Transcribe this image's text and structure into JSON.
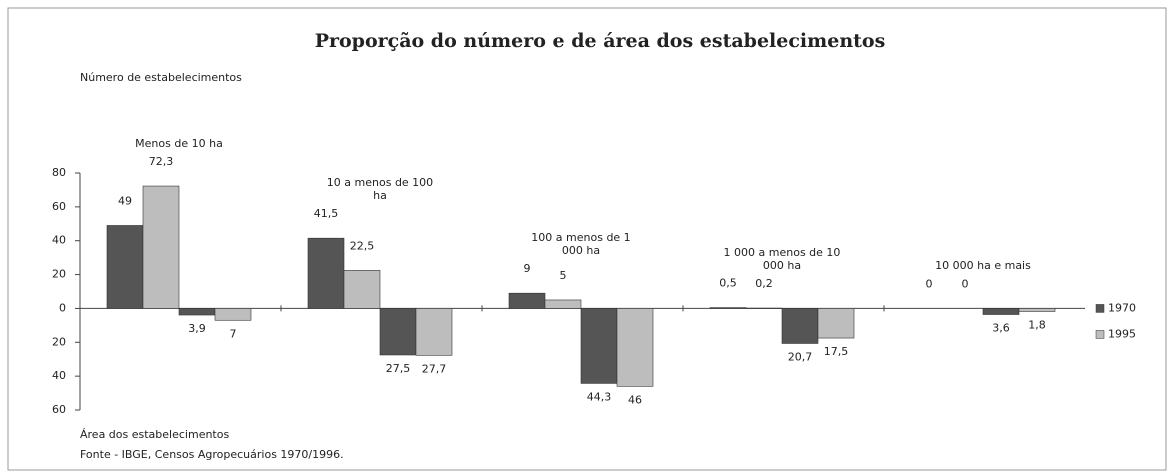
{
  "chart_data": {
    "type": "bar",
    "title": "Proporção do número e de área dos estabelecimentos",
    "y_label_top": "Número de estabelecimentos",
    "y_label_bottom": "Área dos estabelecimentos",
    "source": "Fonte - IBGE, Censos Agropecuários 1970/1996.",
    "categories": [
      "Menos de 10 ha",
      "10 a menos de 100 ha",
      "100 a menos de 1 000 ha",
      "1 000 a menos de 10 000 ha",
      "10 000 ha e mais"
    ],
    "series": [
      {
        "name": "1970",
        "color": "#555555",
        "values": [
          49,
          41.5,
          9,
          0.5,
          0
        ],
        "value_labels": [
          "49",
          "41,5",
          "9",
          "0,5",
          "0"
        ],
        "area_values": [
          -3.9,
          -27.5,
          -44.3,
          -20.7,
          -3.6
        ],
        "area_value_labels": [
          "3,9",
          "27,5",
          "44,3",
          "20,7",
          "3,6"
        ]
      },
      {
        "name": "1995",
        "color": "#bdbdbd",
        "values": [
          72.3,
          22.5,
          5,
          0.2,
          0
        ],
        "value_labels": [
          "72,3",
          "22,5",
          "5",
          "0,2",
          "0"
        ],
        "area_values": [
          -7,
          -27.7,
          -46,
          -17.5,
          -1.8
        ],
        "area_value_labels": [
          "7",
          "27,7",
          "46",
          "17,5",
          "1,8"
        ]
      }
    ],
    "ylim": [
      -60,
      80
    ],
    "yticks": [
      80,
      60,
      40,
      20,
      0,
      {
        "value": -20,
        "label": "20"
      },
      {
        "value": -40,
        "label": "40"
      },
      {
        "value": -60,
        "label": "60"
      }
    ],
    "legend": "right"
  }
}
